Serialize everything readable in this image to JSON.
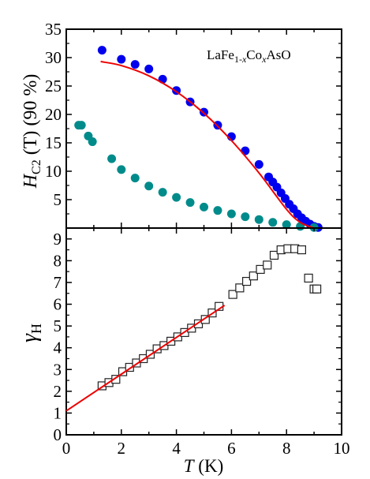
{
  "chart_data": [
    {
      "type": "scatter",
      "panel": "upper",
      "ylabel": {
        "italic": "H",
        "sub": "C2",
        "rest": " (T) (90 %)"
      },
      "annotation": {
        "a": "LaFe",
        "b": "1-",
        "c": "x",
        "d": "Co",
        "e": "x",
        "f": "AsO"
      },
      "xlim": [
        0,
        10
      ],
      "ylim": [
        0,
        35
      ],
      "yticks": [
        "0",
        "5",
        "10",
        "15",
        "20",
        "25",
        "30",
        "35"
      ],
      "series": [
        {
          "marker": "circle",
          "color": "#0000ee",
          "x": [
            1.3,
            2.0,
            2.5,
            3.0,
            3.5,
            4.0,
            4.5,
            5.0,
            5.5,
            6.0,
            6.5,
            7.0,
            7.35,
            7.5,
            7.65,
            7.8,
            7.95,
            8.1,
            8.25,
            8.4,
            8.55,
            8.7,
            8.85,
            9.0,
            9.15
          ],
          "y": [
            31.3,
            29.7,
            28.8,
            28.0,
            26.2,
            24.2,
            22.2,
            20.4,
            18.1,
            16.1,
            13.6,
            11.2,
            9.0,
            8.1,
            7.2,
            6.2,
            5.2,
            4.2,
            3.4,
            2.5,
            1.8,
            1.2,
            0.7,
            0.3,
            0.1
          ]
        },
        {
          "marker": "circle",
          "color": "#008b8b",
          "x": [
            0.45,
            0.55,
            0.8,
            0.95,
            1.65,
            2.0,
            2.5,
            3.0,
            3.5,
            4.0,
            4.5,
            5.0,
            5.5,
            6.0,
            6.5,
            7.0,
            7.5,
            8.0,
            8.5,
            9.0
          ],
          "y": [
            18.1,
            18.1,
            16.2,
            15.2,
            12.2,
            10.3,
            8.8,
            7.4,
            6.3,
            5.4,
            4.5,
            3.7,
            3.1,
            2.5,
            2.0,
            1.5,
            1.0,
            0.6,
            0.3,
            0.1
          ]
        }
      ],
      "fit_line": {
        "color": "#ee0000",
        "x": [
          1.25,
          2.0,
          3.0,
          4.0,
          5.0,
          6.0,
          7.0,
          8.0,
          8.5,
          9.0
        ],
        "y": [
          29.3,
          28.6,
          26.8,
          24.0,
          20.2,
          15.4,
          9.7,
          3.3,
          1.0,
          0.0
        ]
      }
    },
    {
      "type": "scatter",
      "panel": "lower",
      "xlabel": {
        "italic": "T",
        "rest": " (K)"
      },
      "ylabel": {
        "main": "γ",
        "sub": "H"
      },
      "xlim": [
        0,
        10
      ],
      "ylim": [
        0,
        9.5
      ],
      "xticks": [
        "0",
        "2",
        "4",
        "6",
        "8",
        "10"
      ],
      "yticks": [
        "0",
        "1",
        "2",
        "3",
        "4",
        "5",
        "6",
        "7",
        "8",
        "9"
      ],
      "series": [
        {
          "marker": "open-square",
          "color": "#222222",
          "x": [
            1.3,
            1.55,
            1.8,
            2.05,
            2.3,
            2.55,
            2.8,
            3.05,
            3.3,
            3.55,
            3.8,
            4.05,
            4.3,
            4.55,
            4.8,
            5.05,
            5.3,
            5.55,
            6.05,
            6.3,
            6.55,
            6.8,
            7.05,
            7.3,
            7.55,
            7.8,
            8.05,
            8.3,
            8.55,
            8.8,
            9.0,
            9.1
          ],
          "y": [
            2.25,
            2.4,
            2.55,
            2.9,
            3.1,
            3.3,
            3.5,
            3.7,
            3.95,
            4.1,
            4.3,
            4.5,
            4.7,
            4.9,
            5.1,
            5.3,
            5.6,
            5.9,
            6.45,
            6.75,
            7.05,
            7.3,
            7.6,
            7.8,
            8.25,
            8.5,
            8.55,
            8.55,
            8.5,
            7.2,
            6.7,
            6.7
          ]
        }
      ],
      "fit_line": {
        "color": "#ee0000",
        "x": [
          0.0,
          5.75
        ],
        "y": [
          1.1,
          5.95
        ]
      }
    }
  ],
  "colors": {
    "frame": "#000000",
    "background": "#ffffff"
  }
}
